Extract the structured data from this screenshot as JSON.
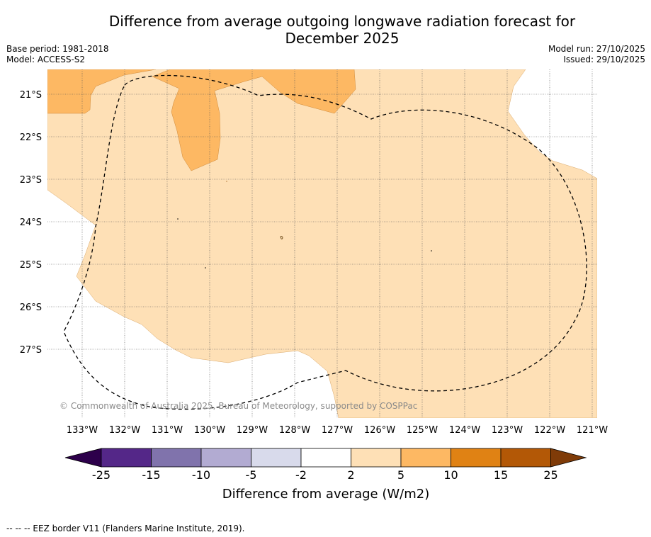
{
  "title_line1": "Difference from average outgoing longwave radiation forecast for",
  "title_line2": "December 2025",
  "base_period": "Base period: 1981-2018",
  "model": "Model: ACCESS-S2",
  "model_run": "Model run: 27/10/2025",
  "issued": "Issued: 29/10/2025",
  "copyright": "© Commonwealth of Australia 2025, Bureau of Meteorology, supported by COSPPac",
  "lat_labels": [
    "21°S",
    "22°S",
    "23°S",
    "24°S",
    "25°S",
    "26°S",
    "27°S"
  ],
  "lon_labels": [
    "133°W",
    "132°W",
    "131°W",
    "130°W",
    "129°W",
    "128°W",
    "127°W",
    "126°W",
    "125°W",
    "124°W",
    "123°W",
    "122°W",
    "121°W"
  ],
  "colorbar": {
    "ticks": [
      "-25",
      "-15",
      "-10",
      "-5",
      "-2",
      "2",
      "5",
      "10",
      "15",
      "25"
    ],
    "colors": [
      "#2d004b",
      "#542788",
      "#8073ac",
      "#b2abd2",
      "#d8daeb",
      "#ffffff",
      "#fee0b6",
      "#fdb863",
      "#e08214",
      "#b35806",
      "#7f3b08"
    ],
    "label": "Difference from average (W/m2)"
  },
  "legend": "-- -- -- EEZ border V11 (Flanders Marine Institute, 2019)."
}
